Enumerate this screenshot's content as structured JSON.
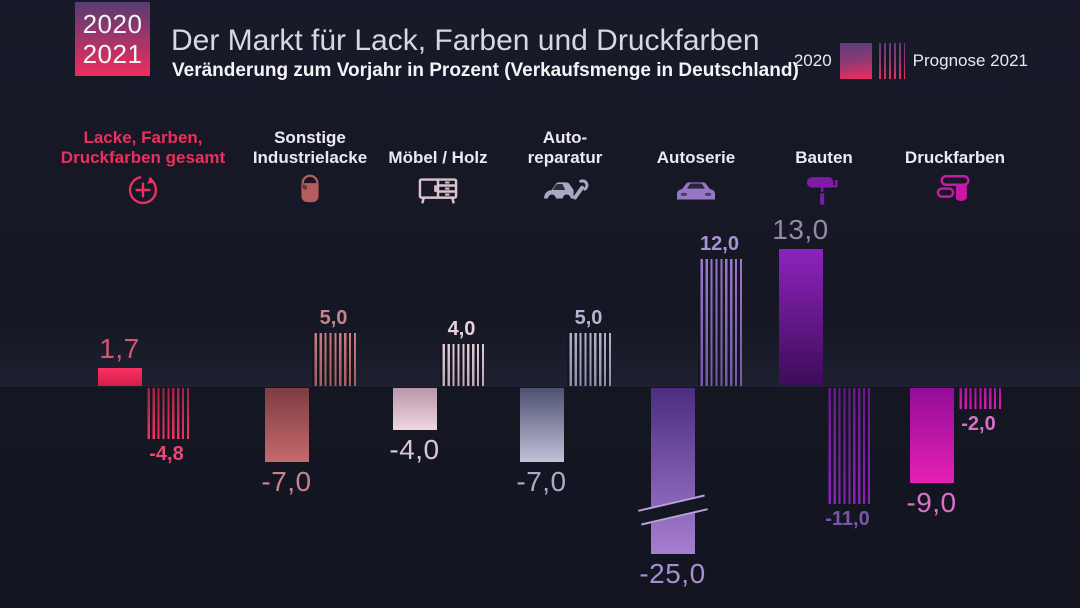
{
  "badge": {
    "line1": "2020",
    "line2": "2021"
  },
  "header": {
    "title": "Der Markt für Lack, Farben und Druckfarben",
    "subtitle": "Veränderung zum Vorjahr in Prozent (Verkaufsmenge in Deutschland)"
  },
  "legend": {
    "solid_label": "2020",
    "striped_label": "Prognose 2021",
    "swatch_gradient_top": "#5a3d7c",
    "swatch_gradient_bottom": "#ee2d5e"
  },
  "colors": {
    "background": "#151724",
    "badge_gradient_top": "#563c74",
    "badge_gradient_bottom": "#ef2d5e",
    "title": "#d7d8e0",
    "subtitle": "#f4f4f7"
  },
  "chart_data": {
    "type": "bar",
    "title": "Der Markt für Lack, Farben und Druckfarben",
    "subtitle": "Veränderung zum Vorjahr in Prozent (Verkaufsmenge in Deutschland)",
    "unit": "percent",
    "baseline": 0,
    "ylim": [
      -25,
      13
    ],
    "grid": false,
    "legend_position": "top-right",
    "series": [
      {
        "name": "2020",
        "style": "solid",
        "values": [
          1.7,
          -7.0,
          -4.0,
          -7.0,
          -25.0,
          13.0,
          -9.0
        ],
        "labels": [
          "1,7",
          "-7,0",
          "-4,0",
          "-7,0",
          "-25,0",
          "13,0",
          "-9,0"
        ]
      },
      {
        "name": "Prognose 2021",
        "style": "striped",
        "values": [
          -4.8,
          5.0,
          4.0,
          5.0,
          12.0,
          -11.0,
          -2.0
        ],
        "labels": [
          "-4,8",
          "5,0",
          "4,0",
          "5,0",
          "12,0",
          "-11,0",
          "-2,0"
        ]
      }
    ],
    "break_marker": {
      "category_index": 4,
      "series_index": 0,
      "note": "Balken unterbrochen, -25,0 gekürzt dargestellt"
    },
    "categories": [
      {
        "name": "Lacke, Farben, Druckfarben gesamt",
        "label": "Lacke, Farben,\nDruckfarben gesamt",
        "icon": "plus-circle-arrow-icon",
        "label_color": "#e8315e",
        "icon_color": "#e8315e",
        "bar_far": "#fb3164",
        "bar_near": "#d01f4c",
        "stripe_far": "#f43263",
        "stripe_near": "#9e2344",
        "label_2020_color": "#d4566f",
        "label_2021_color": "#e94a70"
      },
      {
        "name": "Sonstige Industrielacke",
        "label": "Sonstige\nIndustrielacke",
        "icon": "paint-bucket-icon",
        "label_color": "#eceaf0",
        "icon_color": "#b45c5e",
        "bar_far": "#c6696c",
        "bar_near": "#7c3d43",
        "stripe_far": "#cc7d7f",
        "stripe_near": "#a35d60",
        "label_2020_color": "#c68489",
        "label_2021_color": "#c68489"
      },
      {
        "name": "Möbel / Holz",
        "label": "Möbel / Holz",
        "icon": "furniture-icon",
        "label_color": "#eceaf0",
        "icon_color": "#dcc3ce",
        "bar_far": "#eed6e0",
        "bar_near": "#b897a9",
        "stripe_far": "#e3cbd7",
        "stripe_near": "#c3a5b5",
        "label_2020_color": "#dcc6d2",
        "label_2021_color": "#e5d2dc"
      },
      {
        "name": "Auto-reparatur",
        "label": "Auto-\nreparatur",
        "icon": "car-wrench-icon",
        "label_color": "#eceaf0",
        "icon_color": "#a8aac4",
        "bar_far": "#c1c2d9",
        "bar_near": "#4d5070",
        "stripe_far": "#b2b4ce",
        "stripe_near": "#8b8daa",
        "label_2020_color": "#a9abc8",
        "label_2021_color": "#b3b5d0"
      },
      {
        "name": "Autoserie",
        "label": "Autoserie",
        "icon": "car-icon",
        "label_color": "#eceaf0",
        "icon_color": "#9577c5",
        "bar_far": "#a67ed0",
        "bar_near": "#4c2d80",
        "stripe_far": "#9c77cb",
        "stripe_near": "#7757a5",
        "label_2020_color": "#a78ed0",
        "label_2021_color": "#ab92d4"
      },
      {
        "name": "Bauten",
        "label": "Bauten",
        "icon": "paint-roller-icon",
        "label_color": "#eceaf0",
        "icon_color": "#7e1ca8",
        "bar_far": "#8d23bd",
        "bar_near": "#3c0d58",
        "stripe_far": "#8a24b6",
        "stripe_near": "#641a88",
        "label_2020_color": "#948aa6",
        "label_2021_color": "#7d55a8"
      },
      {
        "name": "Druckfarben",
        "label": "Druckfarben",
        "icon": "print-rollers-icon",
        "label_color": "#eceaf0",
        "icon_color": "#ca18a6",
        "bar_far": "#e620b4",
        "bar_near": "#930c99",
        "stripe_far": "#d81eb2",
        "stripe_near": "#a7149e",
        "label_2020_color": "#d873c4",
        "label_2021_color": "#da70c6"
      }
    ]
  }
}
